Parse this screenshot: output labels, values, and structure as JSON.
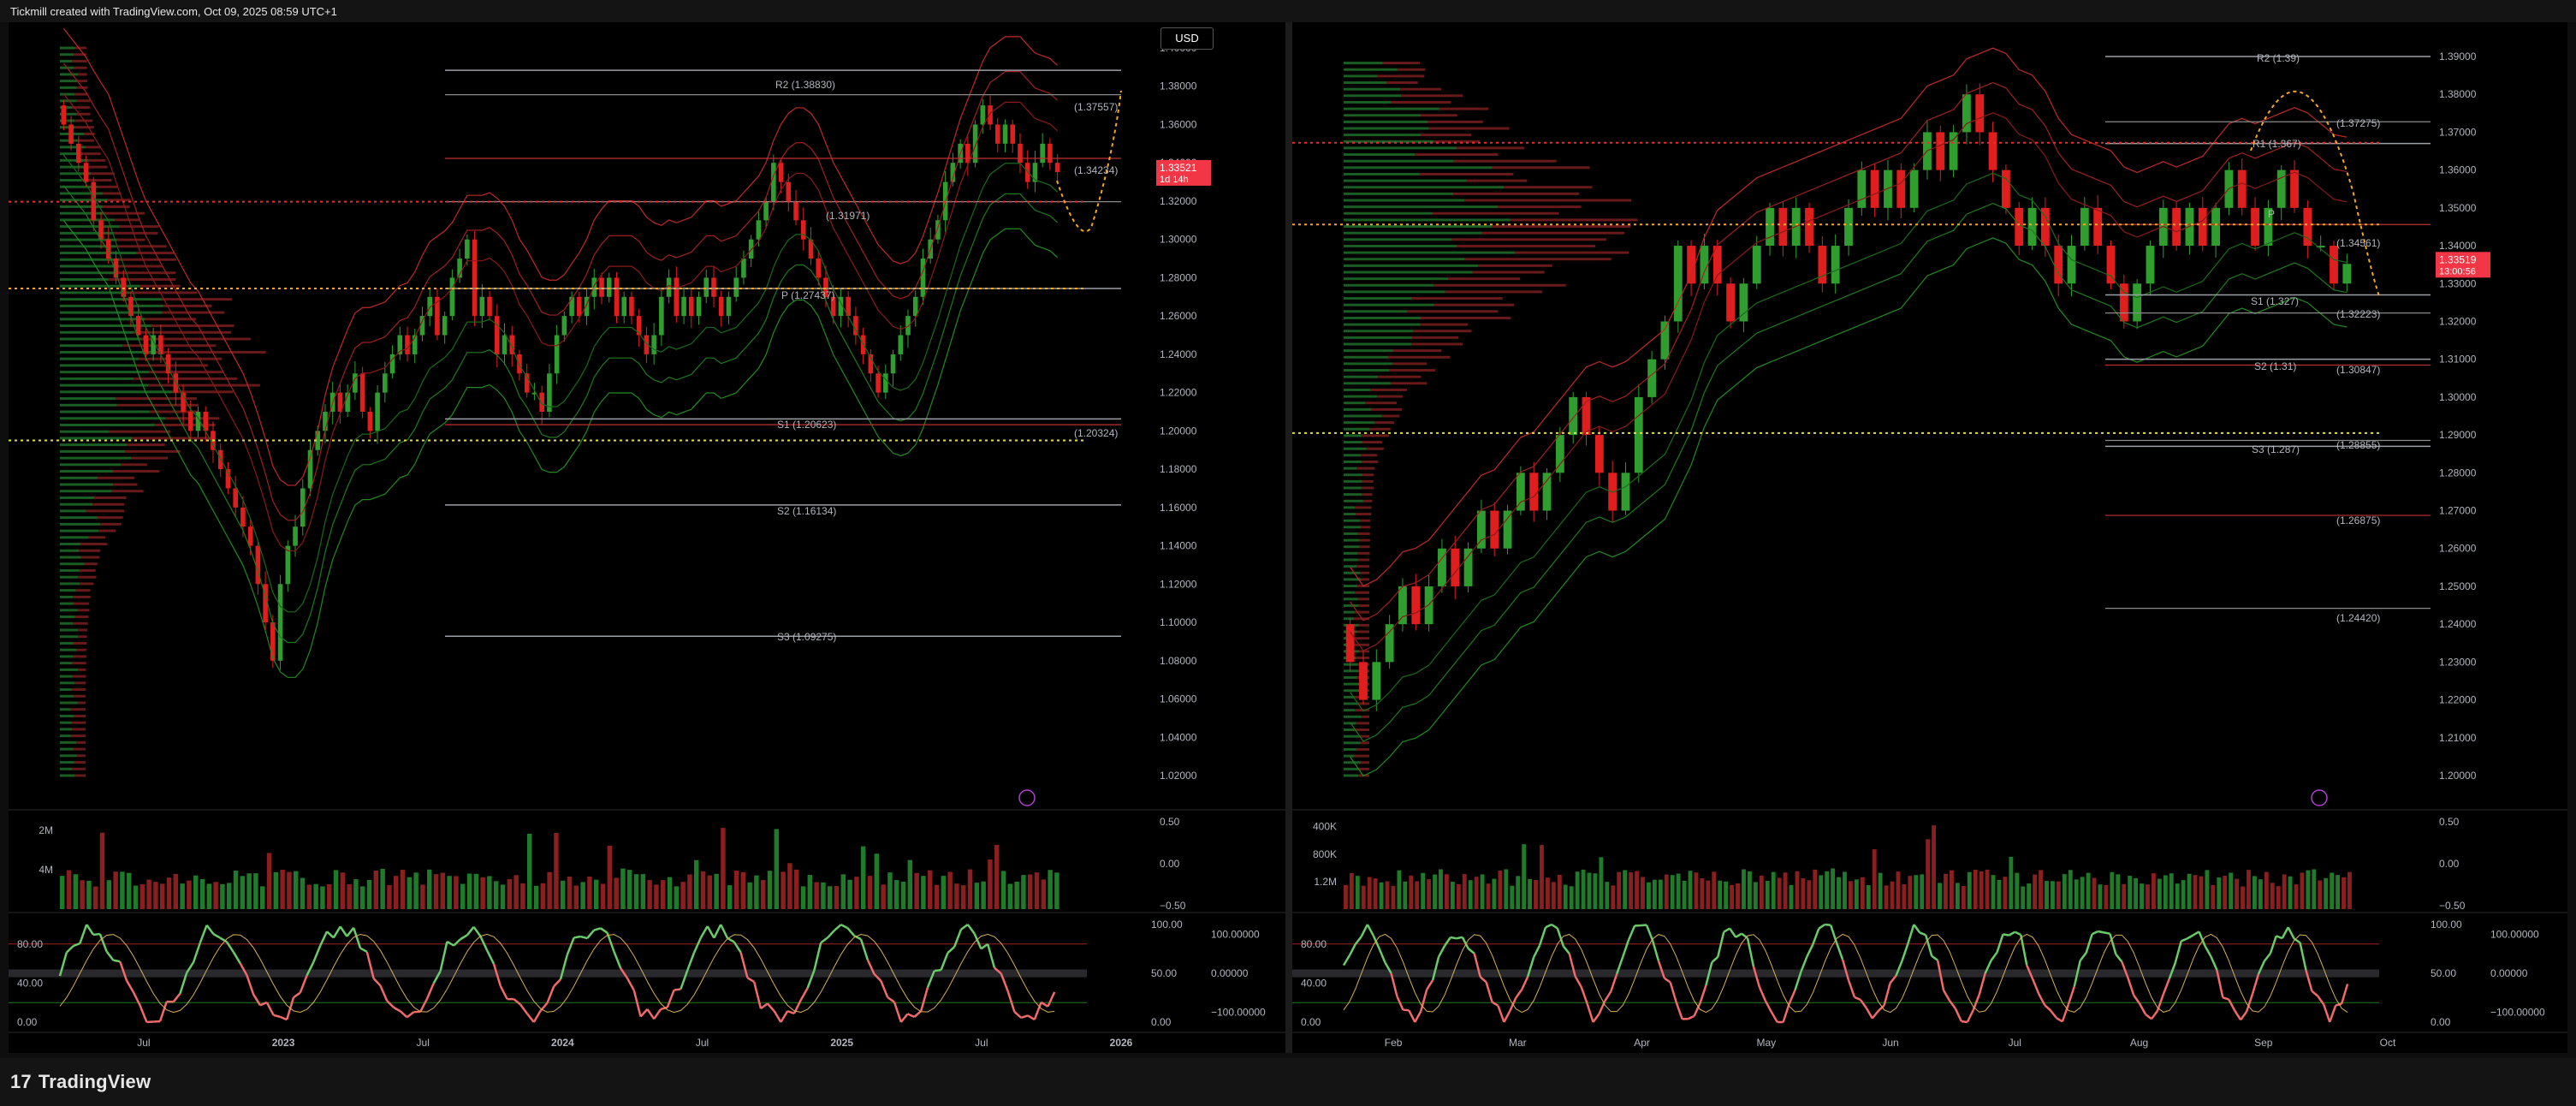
{
  "header": {
    "text": "Tickmill created with TradingView.com, Oct 09, 2025 08:59 UTC+1"
  },
  "footer": {
    "brand": "TradingView"
  },
  "colors": {
    "background": "#000000",
    "up": "#2f9e2f",
    "down": "#e01e1e",
    "pivot_orange": "#f5a623",
    "price_tag": "#f23645"
  },
  "left_chart": {
    "currency_button": "USD",
    "price_axis": [
      "1.40000",
      "1.38000",
      "1.36000",
      "1.34000",
      "1.32000",
      "1.30000",
      "1.28000",
      "1.26000",
      "1.24000",
      "1.22000",
      "1.20000",
      "1.18000",
      "1.16000",
      "1.14000",
      "1.12000",
      "1.10000",
      "1.08000",
      "1.06000",
      "1.04000",
      "1.02000"
    ],
    "time_axis": [
      "Jul",
      "2023",
      "Jul",
      "2024",
      "Jul",
      "2025",
      "Jul",
      "2026"
    ],
    "price_tag": {
      "price": "1.33521",
      "countdown": "1d 14h"
    },
    "pivot_labels": [
      "R2 (1.38830)",
      "P (1.27437)",
      "S1 (1.20623)",
      "S2 (1.16134)",
      "S3 (1.09275)",
      "(1.37557)",
      "(1.34234)",
      "(1.31971)",
      "(1.20324)"
    ],
    "volume_axis": [
      "4M",
      "2M"
    ],
    "volume_right_axis": [
      "0.50",
      "0.00",
      "−0.50"
    ],
    "osc_left_axis": [
      "80.00",
      "40.00",
      "0.00"
    ],
    "osc_right_axis": [
      "100.00",
      "50.00",
      "0.00"
    ],
    "osc_far_axis": [
      "100.00000",
      "0.00000",
      "−100.00000"
    ]
  },
  "right_chart": {
    "price_axis": [
      "1.39000",
      "1.38000",
      "1.37000",
      "1.36000",
      "1.35000",
      "1.34000",
      "1.33000",
      "1.32000",
      "1.31000",
      "1.30000",
      "1.29000",
      "1.28000",
      "1.27000",
      "1.26000",
      "1.25000",
      "1.24000",
      "1.23000",
      "1.22000",
      "1.21000",
      "1.20000"
    ],
    "time_axis": [
      "Feb",
      "Mar",
      "Apr",
      "May",
      "Jun",
      "Jul",
      "Aug",
      "Sep",
      "Oct"
    ],
    "price_tag": {
      "price": "1.33519",
      "countdown": "13:00:56"
    },
    "pivot_labels": [
      "R2 (1.39)",
      "R1 (1.367)",
      "P",
      "S1 (1.327)",
      "S2 (1.31)",
      "S3 (1.287)",
      "(1.37275)",
      "(1.34561)",
      "(1.32223)",
      "(1.30847)",
      "(1.28855)",
      "(1.26875)",
      "(1.24420)"
    ],
    "volume_axis": [
      "1.2M",
      "800K",
      "400K"
    ],
    "volume_right_axis": [
      "0.50",
      "0.00",
      "−0.50"
    ],
    "osc_left_axis": [
      "80.00",
      "40.00",
      "0.00"
    ],
    "osc_right_axis": [
      "100.00",
      "50.00",
      "0.00"
    ],
    "osc_far_axis": [
      "100.00000",
      "0.00000",
      "−100.00000"
    ]
  },
  "chart_data": [
    {
      "type": "candlestick",
      "title": "",
      "timeframe": "weekly",
      "x_range": [
        "2022-03",
        "2026-01"
      ],
      "ylim": [
        1.02,
        1.4
      ],
      "last_price": 1.33521,
      "closes": [
        1.36,
        1.35,
        1.34,
        1.33,
        1.31,
        1.3,
        1.29,
        1.28,
        1.27,
        1.26,
        1.25,
        1.24,
        1.25,
        1.24,
        1.23,
        1.22,
        1.21,
        1.2,
        1.21,
        1.2,
        1.19,
        1.18,
        1.17,
        1.16,
        1.15,
        1.14,
        1.12,
        1.1,
        1.08,
        1.12,
        1.14,
        1.15,
        1.17,
        1.19,
        1.2,
        1.21,
        1.22,
        1.21,
        1.22,
        1.23,
        1.21,
        1.2,
        1.22,
        1.23,
        1.24,
        1.25,
        1.24,
        1.25,
        1.26,
        1.27,
        1.25,
        1.26,
        1.28,
        1.29,
        1.3,
        1.26,
        1.27,
        1.26,
        1.24,
        1.25,
        1.24,
        1.23,
        1.22,
        1.22,
        1.21,
        1.23,
        1.25,
        1.26,
        1.27,
        1.26,
        1.27,
        1.28,
        1.27,
        1.28,
        1.26,
        1.27,
        1.26,
        1.25,
        1.24,
        1.25,
        1.27,
        1.28,
        1.26,
        1.27,
        1.26,
        1.27,
        1.28,
        1.27,
        1.26,
        1.27,
        1.28,
        1.29,
        1.3,
        1.31,
        1.32,
        1.34,
        1.33,
        1.32,
        1.31,
        1.3,
        1.29,
        1.28,
        1.27,
        1.26,
        1.27,
        1.26,
        1.25,
        1.24,
        1.23,
        1.22,
        1.23,
        1.24,
        1.25,
        1.26,
        1.27,
        1.29,
        1.3,
        1.31,
        1.33,
        1.34,
        1.35,
        1.34,
        1.36,
        1.37,
        1.36,
        1.35,
        1.36,
        1.35,
        1.34,
        1.33,
        1.34,
        1.35,
        1.34,
        1.3352
      ],
      "pivot_levels": {
        "R2": 1.3883,
        "P": 1.27437,
        "S1": 1.20623,
        "S2": 1.16134,
        "S3": 1.09275
      },
      "other_levels": [
        1.37557,
        1.34234,
        1.31971,
        1.20324
      ],
      "panes": [
        "price with Bollinger bands and volume profile",
        "volume",
        "stochastic RSI oscillator"
      ]
    },
    {
      "type": "candlestick",
      "title": "",
      "timeframe": "daily",
      "x_range": [
        "2025-01",
        "2025-10"
      ],
      "ylim": [
        1.2,
        1.39
      ],
      "last_price": 1.33519,
      "closes": [
        1.23,
        1.22,
        1.23,
        1.24,
        1.25,
        1.24,
        1.25,
        1.26,
        1.25,
        1.26,
        1.27,
        1.26,
        1.27,
        1.28,
        1.27,
        1.28,
        1.29,
        1.3,
        1.29,
        1.28,
        1.27,
        1.28,
        1.3,
        1.31,
        1.32,
        1.34,
        1.33,
        1.34,
        1.33,
        1.32,
        1.33,
        1.34,
        1.35,
        1.34,
        1.35,
        1.34,
        1.33,
        1.34,
        1.35,
        1.36,
        1.35,
        1.36,
        1.35,
        1.36,
        1.37,
        1.36,
        1.37,
        1.38,
        1.37,
        1.36,
        1.35,
        1.34,
        1.35,
        1.34,
        1.33,
        1.34,
        1.35,
        1.34,
        1.33,
        1.32,
        1.33,
        1.34,
        1.35,
        1.34,
        1.35,
        1.34,
        1.35,
        1.36,
        1.35,
        1.34,
        1.35,
        1.36,
        1.35,
        1.34,
        1.34,
        1.33,
        1.3352
      ],
      "pivot_levels": {
        "R2": 1.39,
        "R1": 1.367,
        "S1": 1.327,
        "S2": 1.31,
        "S3": 1.287
      },
      "other_levels": [
        1.37275,
        1.34561,
        1.32223,
        1.30847,
        1.28855,
        1.26875,
        1.2442
      ],
      "panes": [
        "price with Bollinger bands and volume profile",
        "volume",
        "stochastic RSI oscillator"
      ]
    }
  ]
}
